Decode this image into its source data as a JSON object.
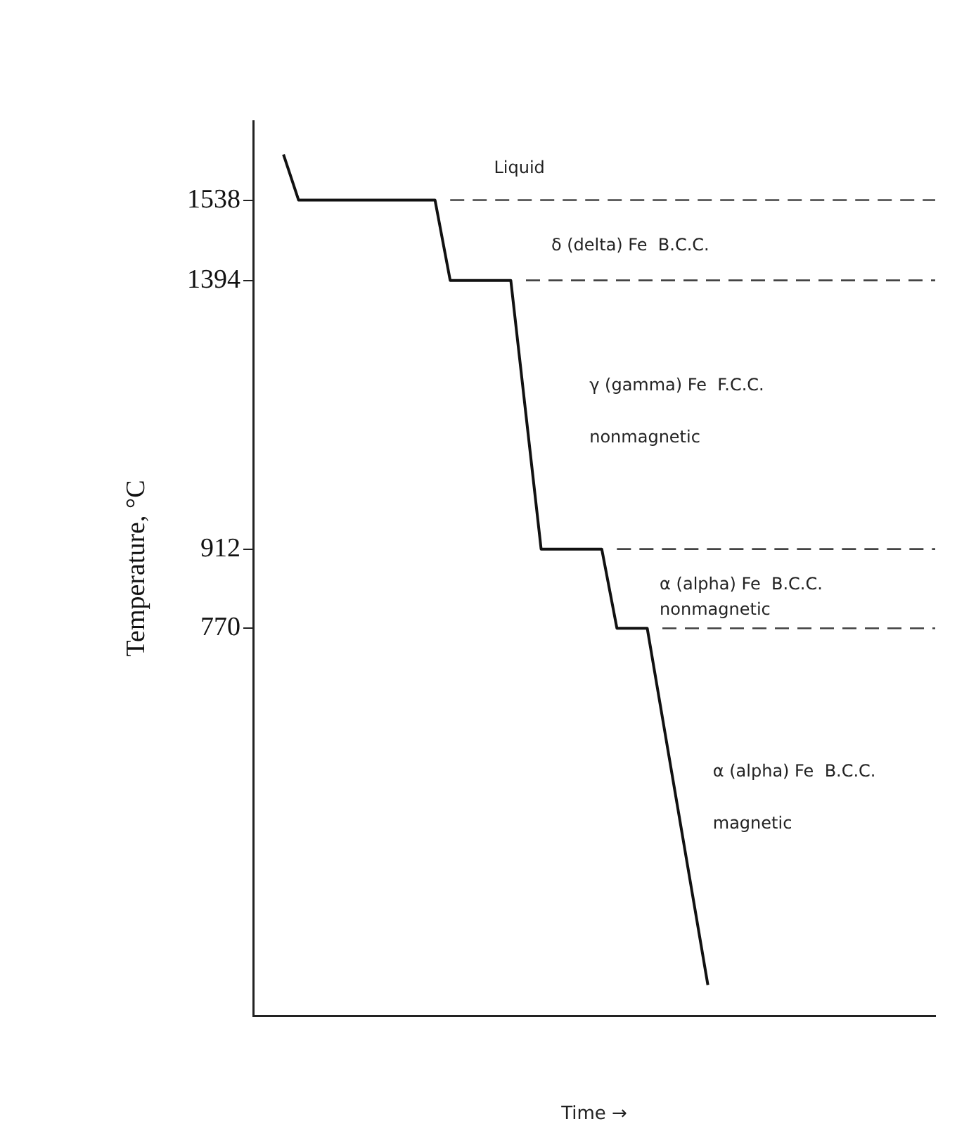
{
  "chart_data": {
    "type": "line",
    "xlabel": "Time →",
    "ylabel": "Temperature, °C",
    "categories": [
      null,
      null,
      null,
      null,
      null,
      null,
      null,
      null,
      null,
      null,
      null,
      null,
      null,
      null,
      null,
      null,
      null,
      null,
      null,
      null,
      null,
      null,
      null,
      null,
      null,
      null,
      null,
      null,
      null,
      null,
      null,
      null,
      null,
      null,
      null,
      null,
      null,
      null,
      null,
      null,
      null,
      null,
      null,
      null,
      null,
      null
    ],
    "ylim": [
      75,
      1680
    ],
    "yticks": [
      770,
      912,
      1394,
      1538
    ],
    "grid": false,
    "marker": "none",
    "series": [
      {
        "color": "#111111",
        "line_style": "solid",
        "values": [
          null,
          null,
          1620,
          1538,
          1538,
          1538,
          1538,
          1538,
          1538,
          1538,
          1538,
          1538,
          1538,
          1394,
          1394,
          1394,
          1394,
          1394,
          1153,
          912,
          912,
          912,
          912,
          912,
          770,
          770,
          770,
          610,
          450,
          290,
          130,
          null,
          null,
          null,
          null,
          null,
          null,
          null,
          null,
          null,
          null,
          null,
          null,
          null,
          null,
          null
        ]
      },
      {
        "color": "#444444",
        "line_style": "dashed",
        "values": [
          null,
          null,
          null,
          null,
          null,
          null,
          null,
          null,
          null,
          null,
          null,
          null,
          null,
          1538,
          1538,
          1538,
          1538,
          1538,
          1538,
          1538,
          1538,
          1538,
          1538,
          1538,
          1538,
          1538,
          1538,
          1538,
          1538,
          1538,
          1538,
          1538,
          1538,
          1538,
          1538,
          1538,
          1538,
          1538,
          1538,
          1538,
          1538,
          1538,
          1538,
          1538,
          1538,
          1538
        ]
      },
      {
        "color": "#444444",
        "line_style": "dashed",
        "values": [
          null,
          null,
          null,
          null,
          null,
          null,
          null,
          null,
          null,
          null,
          null,
          null,
          null,
          null,
          null,
          null,
          null,
          null,
          1394,
          1394,
          1394,
          1394,
          1394,
          1394,
          1394,
          1394,
          1394,
          1394,
          1394,
          1394,
          1394,
          1394,
          1394,
          1394,
          1394,
          1394,
          1394,
          1394,
          1394,
          1394,
          1394,
          1394,
          1394,
          1394,
          1394,
          1394
        ]
      },
      {
        "color": "#444444",
        "line_style": "dashed",
        "values": [
          null,
          null,
          null,
          null,
          null,
          null,
          null,
          null,
          null,
          null,
          null,
          null,
          null,
          null,
          null,
          null,
          null,
          null,
          null,
          null,
          null,
          null,
          null,
          null,
          912,
          912,
          912,
          912,
          912,
          912,
          912,
          912,
          912,
          912,
          912,
          912,
          912,
          912,
          912,
          912,
          912,
          912,
          912,
          912,
          912,
          912
        ]
      },
      {
        "color": "#444444",
        "line_style": "dashed",
        "values": [
          null,
          null,
          null,
          null,
          null,
          null,
          null,
          null,
          null,
          null,
          null,
          null,
          null,
          null,
          null,
          null,
          null,
          null,
          null,
          null,
          null,
          null,
          null,
          null,
          null,
          null,
          null,
          770,
          770,
          770,
          770,
          770,
          770,
          770,
          770,
          770,
          770,
          770,
          770,
          770,
          770,
          770,
          770,
          770,
          770,
          770
        ]
      }
    ],
    "annotations": [
      "Liquid",
      "δ (delta) Fe  B.C.C.",
      "γ (gamma) Fe  F.C.C.",
      "nonmagnetic",
      "α (alpha) Fe  B.C.C.",
      "nonmagnetic",
      "α (alpha) Fe  B.C.C.",
      "magnetic"
    ]
  }
}
